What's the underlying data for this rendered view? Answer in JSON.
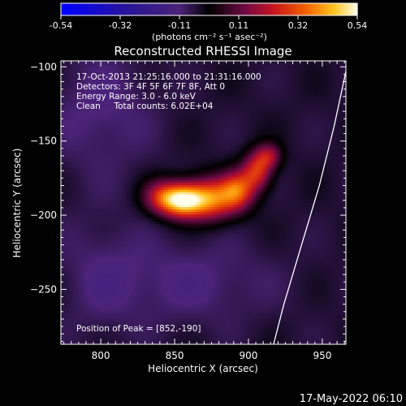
{
  "chart_data": {
    "type": "heatmap",
    "title": "Reconstructed RHESSI Image",
    "xlabel": "Heliocentric X (arcsec)",
    "ylabel": "Heliocentric Y (arcsec)",
    "xlim": [
      773,
      966
    ],
    "ylim": [
      -287,
      -96
    ],
    "x_ticks": [
      800,
      850,
      900,
      950
    ],
    "y_ticks": [
      -100,
      -150,
      -200,
      -250
    ],
    "colorbar": {
      "label": "(photons cm⁻² s⁻¹ asec⁻²)",
      "range": [
        -0.54,
        0.54
      ],
      "ticks": [
        "-0.54",
        "-0.32",
        "-0.11",
        "0.11",
        "0.32",
        "0.54"
      ]
    },
    "annotations": [
      "17-Oct-2013 21:25:16.000 to 21:31:16.000",
      "Detectors: 3F 4F 5F 6F 7F 8F, Att 0",
      "Energy Range: 3.0 - 6.0 keV",
      "Clean     Total counts: 6.02E+04"
    ],
    "peak_label": "Position of Peak = [852,-190]",
    "peak": [
      852,
      -190
    ],
    "sources": [
      {
        "x": 855,
        "y": -190,
        "amp": 0.54,
        "sx": 11,
        "sy": 8
      },
      {
        "x": 876,
        "y": -189,
        "amp": 0.36,
        "sx": 12,
        "sy": 10
      },
      {
        "x": 893,
        "y": -183,
        "amp": 0.3,
        "sx": 8,
        "sy": 9
      },
      {
        "x": 906,
        "y": -170,
        "amp": 0.3,
        "sx": 7,
        "sy": 9
      },
      {
        "x": 914,
        "y": -160,
        "amp": 0.2,
        "sx": 6,
        "sy": 6
      },
      {
        "x": 840,
        "y": -187,
        "amp": 0.18,
        "sx": 9,
        "sy": 8
      },
      {
        "x": 800,
        "y": -130,
        "amp": -0.07,
        "sx": 25,
        "sy": 30
      },
      {
        "x": 860,
        "y": -245,
        "amp": -0.07,
        "sx": 40,
        "sy": 20
      },
      {
        "x": 800,
        "y": -240,
        "amp": -0.05,
        "sx": 20,
        "sy": 30
      }
    ],
    "limb": [
      [
        966,
        -103
      ],
      [
        958,
        -140
      ],
      [
        948,
        -180
      ],
      [
        936,
        -220
      ],
      [
        924,
        -260
      ],
      [
        917,
        -287
      ]
    ]
  },
  "footer": {
    "date": "17-May-2022 06:10"
  }
}
